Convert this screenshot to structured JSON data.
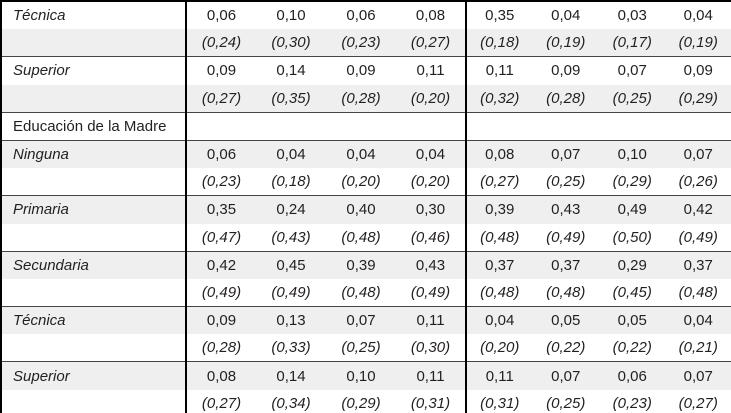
{
  "table": {
    "description_labels": {
      "section_header": "Educación de la Madre"
    },
    "colors": {
      "stripe_background": "#efefef",
      "outer_border": "#000000",
      "inner_rule": "#454545",
      "text": "#231f20"
    },
    "rows": [
      {
        "type": "data",
        "label": "Técnica",
        "values": [
          "0,06",
          "0,10",
          "0,06",
          "0,08",
          "0,35",
          "0,04",
          "0,03",
          "0,04"
        ]
      },
      {
        "type": "sd",
        "label": "",
        "values": [
          "(0,24)",
          "(0,30)",
          "(0,23)",
          "(0,27)",
          "(0,18)",
          "(0,19)",
          "(0,17)",
          "(0,19)"
        ]
      },
      {
        "type": "data",
        "label": "Superior",
        "values": [
          "0,09",
          "0,14",
          "0,09",
          "0,11",
          "0,11",
          "0,09",
          "0,07",
          "0,09"
        ]
      },
      {
        "type": "sd",
        "label": "",
        "values": [
          "(0,27)",
          "(0,35)",
          "(0,28)",
          "(0,20)",
          "(0,32)",
          "(0,28)",
          "(0,25)",
          "(0,29)"
        ]
      },
      {
        "type": "section",
        "label": "Educación de la Madre",
        "values": [
          "",
          "",
          "",
          "",
          "",
          "",
          "",
          ""
        ]
      },
      {
        "type": "data",
        "label": "Ninguna",
        "values": [
          "0,06",
          "0,04",
          "0,04",
          "0,04",
          "0,08",
          "0,07",
          "0,10",
          "0,07"
        ]
      },
      {
        "type": "sd",
        "label": "",
        "values": [
          "(0,23)",
          "(0,18)",
          "(0,20)",
          "(0,20)",
          "(0,27)",
          "(0,25)",
          "(0,29)",
          "(0,26)"
        ]
      },
      {
        "type": "data",
        "label": "Primaria",
        "values": [
          "0,35",
          "0,24",
          "0,40",
          "0,30",
          "0,39",
          "0,43",
          "0,49",
          "0,42"
        ]
      },
      {
        "type": "sd",
        "label": "",
        "values": [
          "(0,47)",
          "(0,43)",
          "(0,48)",
          "(0,46)",
          "(0,48)",
          "(0,49)",
          "(0,50)",
          "(0,49)"
        ]
      },
      {
        "type": "data",
        "label": "Secundaria",
        "values": [
          "0,42",
          "0,45",
          "0,39",
          "0,43",
          "0,37",
          "0,37",
          "0,29",
          "0,37"
        ]
      },
      {
        "type": "sd",
        "label": "",
        "values": [
          "(0,49)",
          "(0,49)",
          "(0,48)",
          "(0,49)",
          "(0,48)",
          "(0,48)",
          "(0,45)",
          "(0,48)"
        ]
      },
      {
        "type": "data",
        "label": "Técnica",
        "values": [
          "0,09",
          "0,13",
          "0,07",
          "0,11",
          "0,04",
          "0,05",
          "0,05",
          "0,04"
        ]
      },
      {
        "type": "sd",
        "label": "",
        "values": [
          "(0,28)",
          "(0,33)",
          "(0,25)",
          "(0,30)",
          "(0,20)",
          "(0,22)",
          "(0,22)",
          "(0,21)"
        ]
      },
      {
        "type": "data",
        "label": "Superior",
        "values": [
          "0,08",
          "0,14",
          "0,10",
          "0,11",
          "0,11",
          "0,07",
          "0,06",
          "0,07"
        ]
      },
      {
        "type": "sd",
        "label": "",
        "values": [
          "(0,27)",
          "(0,34)",
          "(0,29)",
          "(0,31)",
          "(0,31)",
          "(0,25)",
          "(0,23)",
          "(0,27)"
        ]
      }
    ]
  }
}
